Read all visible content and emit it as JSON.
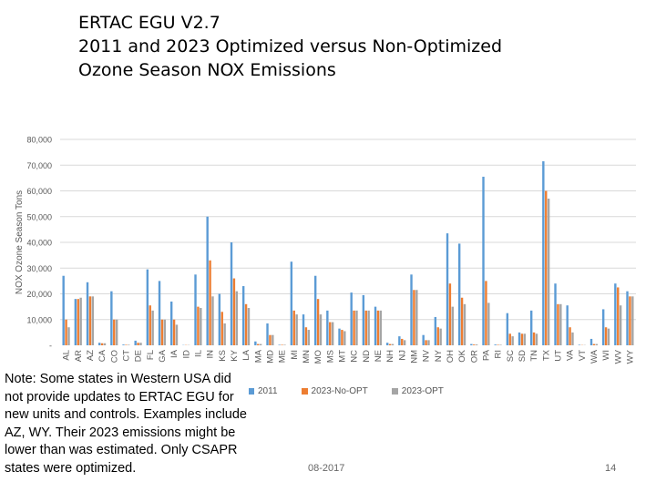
{
  "slide": {
    "title_lines": [
      "ERTAC EGU V2.7",
      "2011 and 2023 Optimized versus Non-Optimized",
      "Ozone Season NOX Emissions"
    ],
    "note": "Note:  Some states in Western USA did not provide updates to ERTAC EGU for new units and controls.  Examples include AZ, WY.  Their 2023 emissions might be lower than was estimated.  Only CSAPR states were optimized.",
    "footer_date": "08-2017",
    "page_number": "14"
  },
  "colors": {
    "s2011": "#5b9bd5",
    "s2023nopt": "#ed7d31",
    "s2023opt": "#a5a5a5",
    "grid": "#d9d9d9",
    "axis_text": "#595959"
  },
  "chart_data": {
    "type": "bar",
    "title": "",
    "xlabel": "",
    "ylabel": "NOX Ozone Season Tons",
    "ylim": [
      0,
      80000
    ],
    "yticks": [
      0,
      10000,
      20000,
      30000,
      40000,
      50000,
      60000,
      70000,
      80000
    ],
    "ytick_labels": [
      "-",
      "10,000",
      "20,000",
      "30,000",
      "40,000",
      "50,000",
      "60,000",
      "70,000",
      "80,000"
    ],
    "grid": true,
    "legend_position": "bottom",
    "categories": [
      "AL",
      "AR",
      "AZ",
      "CA",
      "CO",
      "CT",
      "DE",
      "FL",
      "GA",
      "IA",
      "ID",
      "IL",
      "IN",
      "KS",
      "KY",
      "LA",
      "MA",
      "MD",
      "ME",
      "MI",
      "MN",
      "MO",
      "MS",
      "MT",
      "NC",
      "ND",
      "NE",
      "NH",
      "NJ",
      "NM",
      "NV",
      "NY",
      "OH",
      "OK",
      "OR",
      "PA",
      "RI",
      "SC",
      "SD",
      "TN",
      "TX",
      "UT",
      "VA",
      "VT",
      "WA",
      "WI",
      "WV",
      "WY"
    ],
    "series": [
      {
        "name": "2011",
        "values": [
          27000,
          18000,
          24500,
          1000,
          21000,
          300,
          1800,
          29500,
          25000,
          17000,
          100,
          27500,
          50000,
          20000,
          40000,
          23000,
          1500,
          8500,
          200,
          32500,
          12000,
          27000,
          13500,
          6500,
          20500,
          19500,
          15000,
          1000,
          3500,
          27500,
          4000,
          11000,
          43500,
          39500,
          500,
          65500,
          300,
          12500,
          5000,
          13500,
          71500,
          24000,
          15500,
          200,
          2500,
          14000,
          24000,
          21000
        ]
      },
      {
        "name": "2023-No-OPT",
        "values": [
          10000,
          18000,
          19000,
          800,
          10000,
          200,
          1000,
          15500,
          10000,
          10000,
          100,
          15000,
          33000,
          13000,
          26000,
          16000,
          500,
          4000,
          200,
          13500,
          7000,
          18000,
          9000,
          6000,
          13500,
          13500,
          13500,
          500,
          2500,
          21500,
          2000,
          7000,
          24000,
          18500,
          300,
          25000,
          200,
          4500,
          4500,
          5000,
          60000,
          16000,
          7000,
          100,
          500,
          7000,
          22500,
          19000
        ]
      },
      {
        "name": "2023-OPT",
        "values": [
          7000,
          18500,
          19000,
          800,
          10000,
          200,
          1000,
          13500,
          10000,
          8000,
          100,
          14500,
          19000,
          8500,
          21000,
          14500,
          500,
          4000,
          200,
          12000,
          6000,
          12000,
          9000,
          5500,
          13500,
          13500,
          13500,
          500,
          2000,
          21500,
          2000,
          6500,
          15000,
          16000,
          300,
          16500,
          200,
          3500,
          4500,
          4500,
          57000,
          16000,
          5000,
          100,
          500,
          6500,
          15500,
          19000
        ]
      }
    ]
  }
}
